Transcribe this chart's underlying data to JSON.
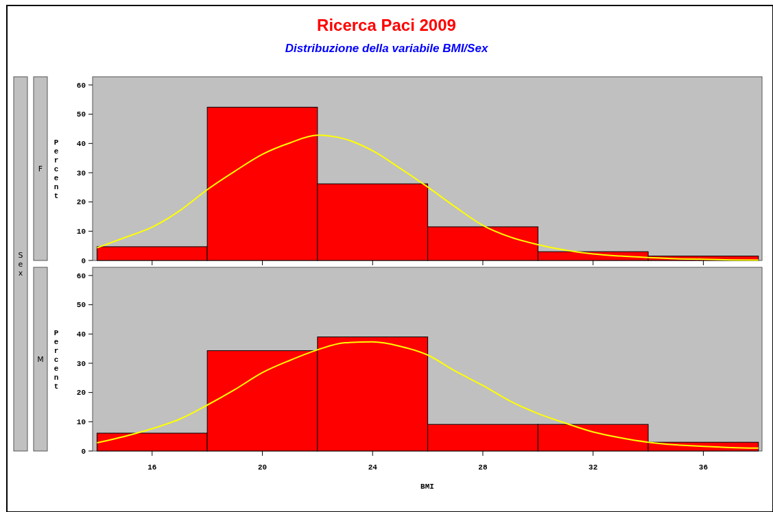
{
  "chart_data": [
    {
      "type": "histogram",
      "title": "Ricerca Paci 2009",
      "subtitle": "Distribuzione della variabile BMI/Sex",
      "ylabel": "Percent",
      "annotations": [
        "F",
        "Sex"
      ],
      "xlim": [
        13.84,
        38.13
      ],
      "xticks": [
        16,
        20,
        24,
        28,
        32,
        36
      ],
      "ylim": [
        0,
        62.8
      ],
      "yticks": [
        0,
        10,
        20,
        30,
        40,
        50,
        60
      ],
      "tick_labels": "y",
      "grid": false,
      "series": [
        {
          "type": "histogram",
          "color": "#ff0000",
          "bins": [
            14,
            18,
            22,
            26,
            30,
            34,
            38
          ],
          "values": [
            4.7,
            52.4,
            26.2,
            11.5,
            3.0,
            1.5
          ]
        },
        {
          "type": "line",
          "color": "#ffff00",
          "x": [
            14,
            15,
            16,
            17,
            18,
            19,
            20,
            21,
            22,
            23,
            24,
            25,
            26,
            27,
            28,
            29,
            30,
            31,
            32,
            33,
            34,
            35,
            36,
            37,
            38
          ],
          "values": [
            4.3,
            7.8,
            11.4,
            17,
            24.2,
            30.5,
            36.3,
            40.2,
            42.8,
            41.5,
            37.5,
            31.5,
            25.1,
            18.3,
            12.0,
            8,
            5.4,
            3.5,
            2.2,
            1.5,
            1.0,
            0.6,
            0.4,
            0.2,
            0.1
          ]
        }
      ]
    },
    {
      "type": "histogram",
      "xlabel": "BMI",
      "ylabel": "Percent",
      "annotations": [
        "M"
      ],
      "xlim": [
        13.84,
        38.13
      ],
      "xticks": [
        16,
        20,
        24,
        28,
        32,
        36
      ],
      "ylim": [
        0,
        62.8
      ],
      "yticks": [
        0,
        10,
        20,
        30,
        40,
        50,
        60
      ],
      "grid": false,
      "series": [
        {
          "type": "histogram",
          "color": "#ff0000",
          "bins": [
            14,
            18,
            22,
            26,
            30,
            34,
            38
          ],
          "values": [
            6.1,
            34.3,
            39.0,
            9.1,
            9.1,
            3.0
          ]
        },
        {
          "type": "line",
          "color": "#ffff00",
          "x": [
            14,
            15,
            16,
            17,
            18,
            19,
            20,
            21,
            22,
            23,
            24,
            25,
            26,
            27,
            28,
            29,
            30,
            31,
            32,
            33,
            34,
            35,
            36,
            37,
            38
          ],
          "values": [
            2.8,
            5.0,
            7.6,
            10.9,
            15.7,
            21,
            26.8,
            31,
            34.6,
            37.0,
            37.3,
            35.8,
            32.8,
            27.3,
            22.4,
            17,
            12.8,
            9.5,
            6.5,
            4.5,
            3.0,
            2.1,
            1.6,
            1.2,
            1.0
          ]
        }
      ]
    }
  ]
}
